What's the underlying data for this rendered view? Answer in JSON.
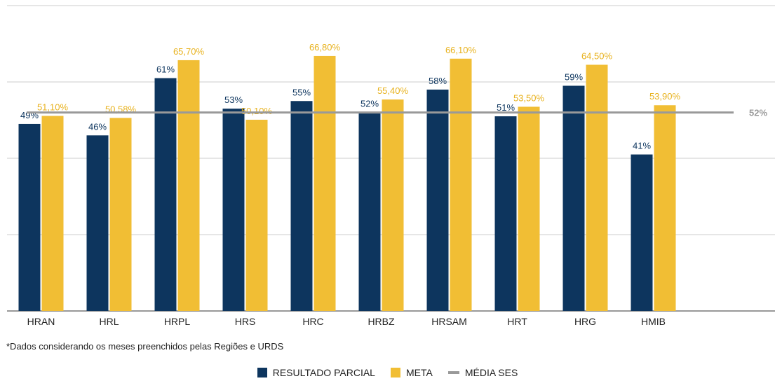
{
  "chart_data": {
    "type": "bar",
    "title": "",
    "xlabel": "",
    "ylabel": "",
    "ylim": [
      0,
      80
    ],
    "grid": true,
    "legend_position": "bottom",
    "categories": [
      "HRAN",
      "HRL",
      "HRPL",
      "HRS",
      "HRC",
      "HRBZ",
      "HRSAM",
      "HRT",
      "HRG",
      "HMIB"
    ],
    "series": [
      {
        "name": "RESULTADO PARCIAL",
        "color": "#0d355e",
        "values": [
          49,
          46,
          61,
          53,
          55,
          52,
          58,
          51,
          59,
          41
        ],
        "labels": [
          "49%",
          "46%",
          "61%",
          "53%",
          "55%",
          "52%",
          "58%",
          "51%",
          "59%",
          "41%"
        ]
      },
      {
        "name": "META",
        "color": "#f1be34",
        "values": [
          51.1,
          50.58,
          65.7,
          50.1,
          66.8,
          55.4,
          66.1,
          53.5,
          64.5,
          53.9
        ],
        "labels": [
          "51,10%",
          "50,58%",
          "65,70%",
          "50,10%",
          "66,80%",
          "55,40%",
          "66,10%",
          "53,50%",
          "64,50%",
          "53,90%"
        ]
      },
      {
        "name": "MÉDIA SES",
        "type": "line",
        "color": "#999999",
        "value": 52,
        "label": "52%"
      }
    ]
  },
  "footnote": "*Dados considerando os meses preenchidos pelas Regiões e URDS",
  "legend": {
    "items": [
      "RESULTADO PARCIAL",
      "META",
      "MÉDIA SES"
    ]
  }
}
